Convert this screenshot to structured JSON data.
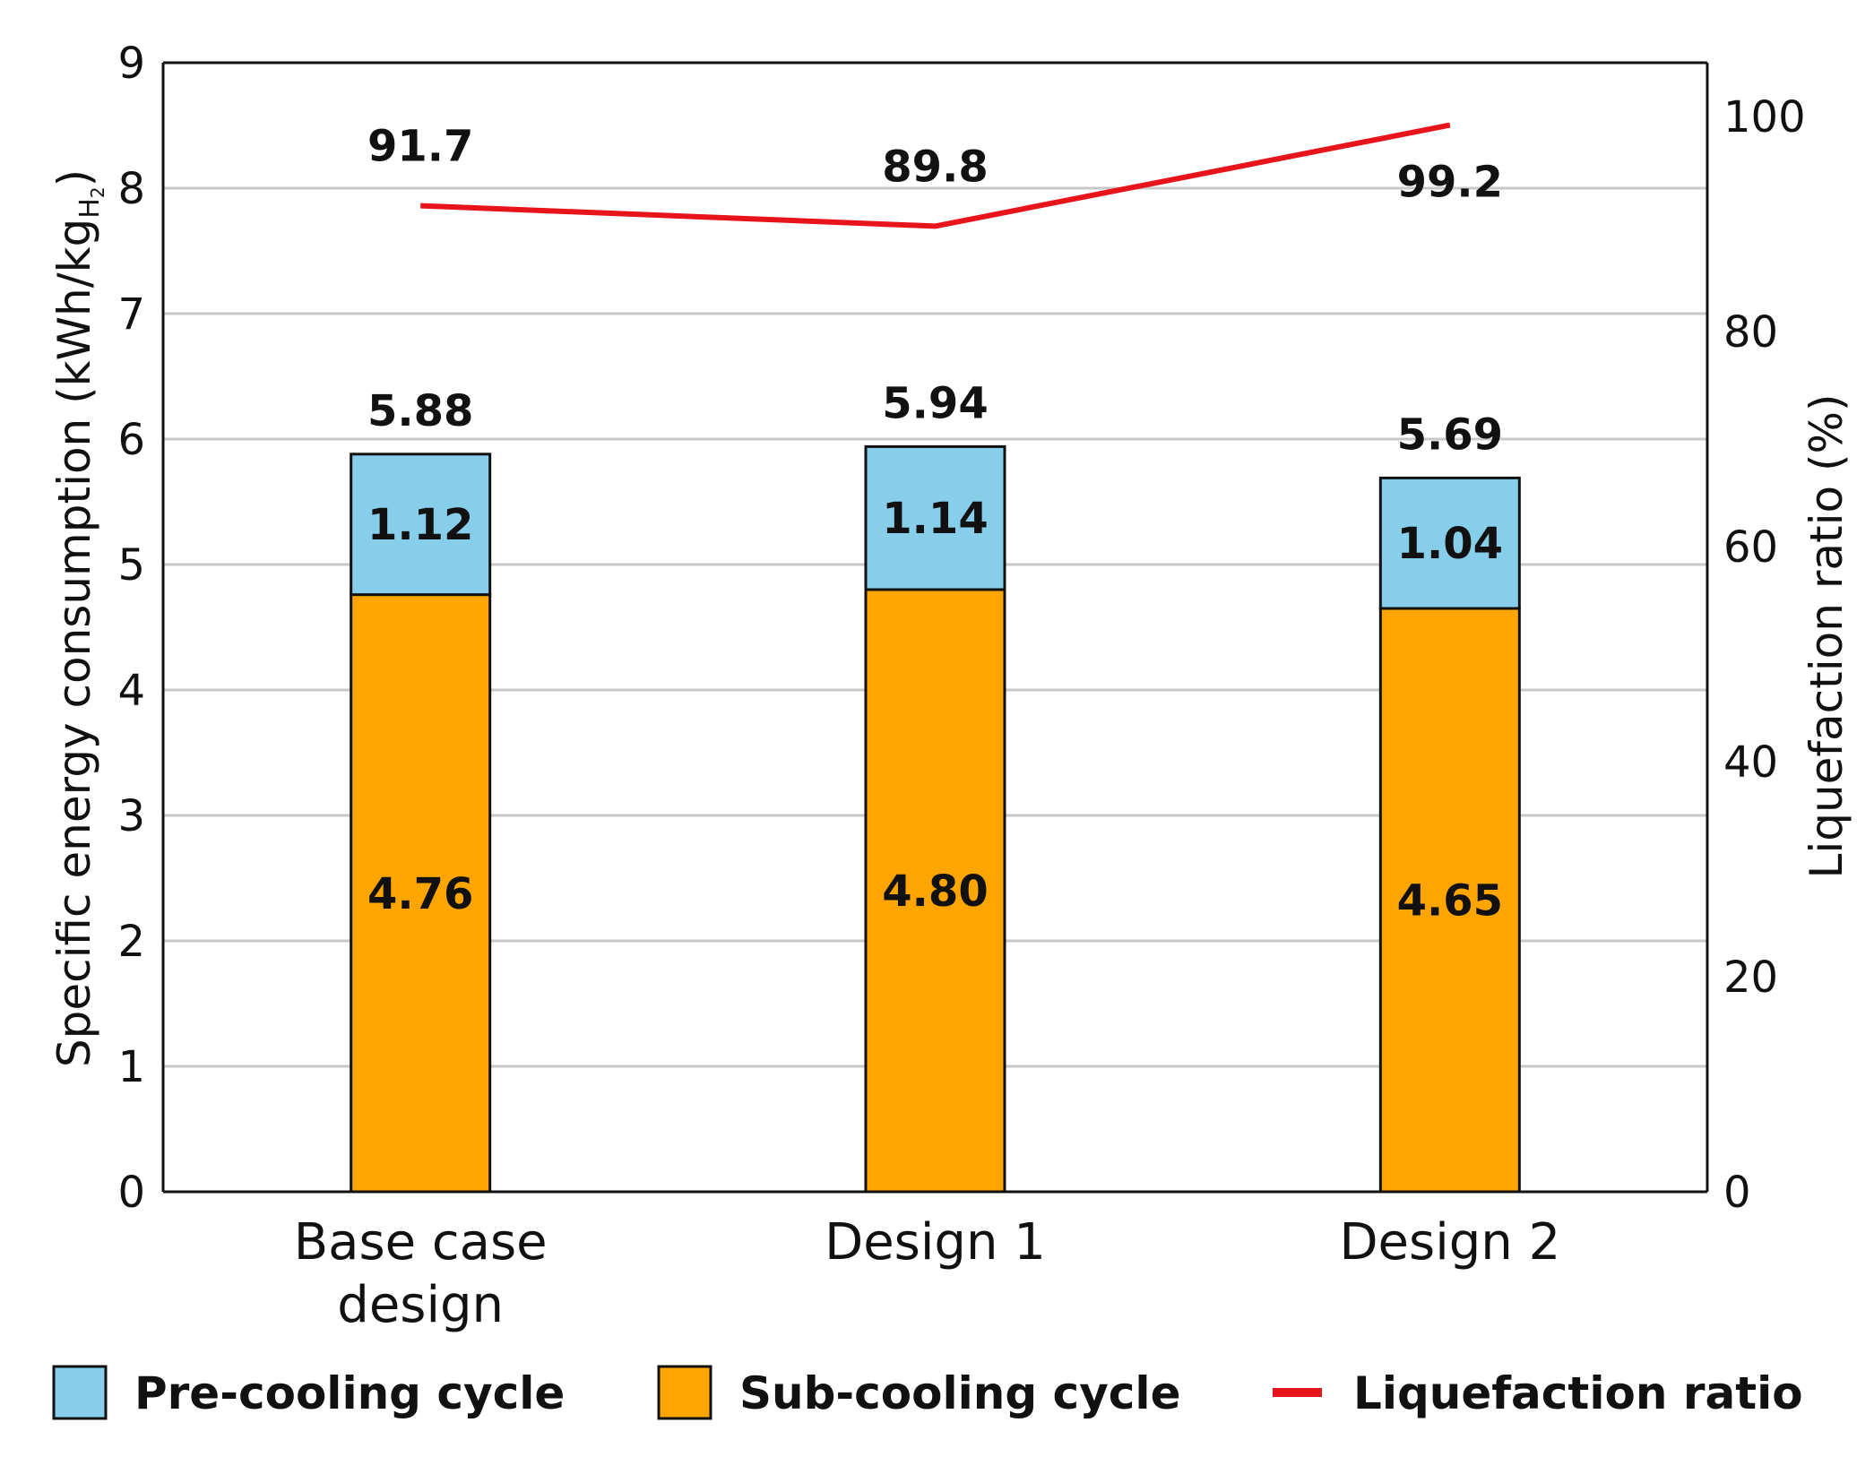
{
  "chart_data": {
    "type": "bar",
    "stacked": true,
    "categories": [
      "Base case design",
      "Design 1",
      "Design 2"
    ],
    "category_lines": [
      [
        "Base case",
        "design"
      ],
      [
        "Design 1"
      ],
      [
        "Design 2"
      ]
    ],
    "series": [
      {
        "name": "Sub-cooling cycle",
        "values": [
          4.76,
          4.8,
          4.65
        ],
        "value_labels": [
          "4.76",
          "4.80",
          "4.65"
        ],
        "color": "#FFA500",
        "axis": "left"
      },
      {
        "name": "Pre-cooling cycle",
        "values": [
          1.12,
          1.14,
          1.04
        ],
        "value_labels": [
          "1.12",
          "1.14",
          "1.04"
        ],
        "color": "#87CEEB",
        "axis": "left"
      }
    ],
    "totals": [
      5.88,
      5.94,
      5.69
    ],
    "total_labels": [
      "5.88",
      "5.94",
      "5.69"
    ],
    "line_series": {
      "name": "Liquefaction ratio",
      "values": [
        91.7,
        89.8,
        99.2
      ],
      "value_labels": [
        "91.7",
        "89.8",
        "99.2"
      ],
      "color": "#E8141B",
      "axis": "right"
    },
    "y_left": {
      "label_main": "Specific energy consumption (kWh/kg",
      "label_sub": "H",
      "label_sub2": "2",
      "label_close": ")",
      "lim": [
        0,
        9
      ],
      "ticks": [
        0,
        1,
        2,
        3,
        4,
        5,
        6,
        7,
        8,
        9
      ],
      "tick_labels": [
        "0",
        "1",
        "2",
        "3",
        "4",
        "5",
        "6",
        "7",
        "8",
        "9"
      ]
    },
    "y_right": {
      "label": "Liquefaction ratio (%)",
      "lim": [
        0,
        105
      ],
      "ticks": [
        0,
        20,
        40,
        60,
        80,
        100
      ],
      "tick_labels": [
        "0",
        "20",
        "40",
        "60",
        "80",
        "100"
      ]
    },
    "grid": true,
    "legend": {
      "position": "bottom",
      "items": [
        {
          "label": "Pre-cooling cycle",
          "color": "#87CEEB",
          "kind": "box"
        },
        {
          "label": "Sub-cooling cycle",
          "color": "#FFA500",
          "kind": "box"
        },
        {
          "label": "Liquefaction ratio",
          "color": "#E8141B",
          "kind": "line"
        }
      ]
    }
  }
}
